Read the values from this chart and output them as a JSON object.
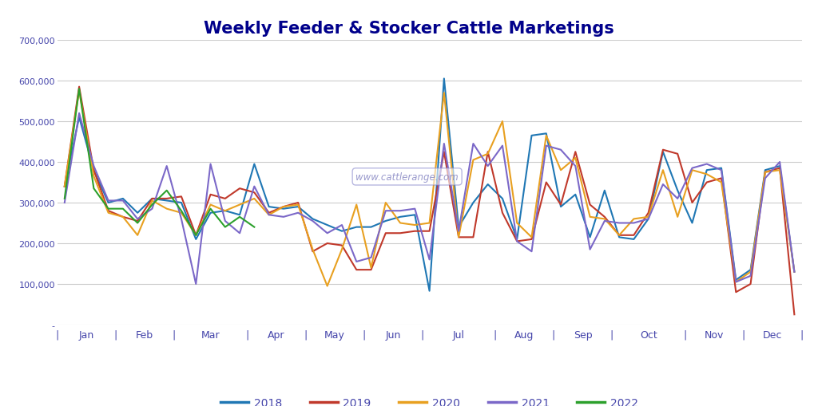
{
  "title": "Weekly Feeder & Stocker Cattle Marketings",
  "background_color": "#ffffff",
  "title_color": "#00008B",
  "title_fontsize": 15,
  "axis_label_color": "#4444aa",
  "grid_color": "#cccccc",
  "ylim": [
    0,
    700000
  ],
  "yticks": [
    0,
    100000,
    200000,
    300000,
    400000,
    500000,
    600000,
    700000
  ],
  "ytick_labels": [
    "-",
    "100,000",
    "200,000",
    "300,000",
    "400,000",
    "500,000",
    "600,000",
    "700,000"
  ],
  "watermark": "www.cattlerange.com",
  "series": {
    "2018": {
      "color": "#1f77b4",
      "values": [
        340000,
        510000,
        380000,
        300000,
        310000,
        275000,
        310000,
        305000,
        300000,
        210000,
        275000,
        280000,
        270000,
        395000,
        290000,
        285000,
        290000,
        260000,
        245000,
        230000,
        240000,
        240000,
        255000,
        265000,
        270000,
        83000,
        605000,
        240000,
        300000,
        345000,
        310000,
        210000,
        465000,
        470000,
        290000,
        320000,
        215000,
        330000,
        215000,
        210000,
        260000,
        425000,
        330000,
        250000,
        380000,
        385000,
        110000,
        135000,
        380000,
        390000,
        130000
      ]
    },
    "2019": {
      "color": "#c0392b",
      "values": [
        340000,
        585000,
        380000,
        280000,
        265000,
        255000,
        310000,
        310000,
        315000,
        220000,
        320000,
        310000,
        335000,
        325000,
        275000,
        290000,
        300000,
        180000,
        200000,
        195000,
        135000,
        135000,
        225000,
        225000,
        230000,
        230000,
        425000,
        215000,
        215000,
        425000,
        275000,
        205000,
        210000,
        350000,
        295000,
        425000,
        295000,
        265000,
        220000,
        220000,
        275000,
        430000,
        420000,
        300000,
        350000,
        360000,
        80000,
        100000,
        375000,
        385000,
        25000
      ]
    },
    "2020": {
      "color": "#e8a020",
      "values": [
        340000,
        575000,
        365000,
        275000,
        265000,
        220000,
        305000,
        285000,
        275000,
        220000,
        295000,
        280000,
        295000,
        310000,
        270000,
        290000,
        295000,
        185000,
        95000,
        185000,
        295000,
        140000,
        300000,
        250000,
        245000,
        250000,
        570000,
        215000,
        405000,
        420000,
        500000,
        250000,
        215000,
        465000,
        380000,
        410000,
        265000,
        260000,
        220000,
        260000,
        265000,
        380000,
        265000,
        380000,
        370000,
        350000,
        105000,
        130000,
        375000,
        380000,
        130000
      ]
    },
    "2021": {
      "color": "#7b68c8",
      "values": [
        300000,
        520000,
        390000,
        305000,
        305000,
        260000,
        285000,
        390000,
        260000,
        100000,
        395000,
        255000,
        225000,
        340000,
        270000,
        265000,
        275000,
        255000,
        225000,
        245000,
        155000,
        165000,
        280000,
        280000,
        285000,
        160000,
        445000,
        230000,
        445000,
        390000,
        440000,
        205000,
        180000,
        440000,
        430000,
        390000,
        185000,
        255000,
        250000,
        250000,
        260000,
        345000,
        310000,
        385000,
        395000,
        380000,
        105000,
        120000,
        360000,
        400000,
        130000
      ]
    },
    "2022": {
      "color": "#2ca02c",
      "values": [
        310000,
        580000,
        335000,
        285000,
        285000,
        250000,
        295000,
        330000,
        280000,
        220000,
        285000,
        240000,
        265000,
        240000,
        null,
        null,
        null,
        null,
        null,
        null,
        null,
        null,
        null,
        null,
        null,
        null,
        null,
        null,
        null,
        null,
        null,
        null,
        null,
        null,
        null,
        null,
        null,
        null,
        null,
        null,
        null,
        null,
        null,
        null,
        null,
        null,
        null,
        null,
        null,
        null,
        null
      ]
    }
  },
  "month_labels": [
    "Jan",
    "Feb",
    "Mar",
    "Apr",
    "May",
    "Jun",
    "Jul",
    "Aug",
    "Sep",
    "Oct",
    "Nov",
    "Dec"
  ],
  "weeks_per_month": [
    4,
    4,
    5,
    4,
    4,
    4,
    5,
    4,
    4,
    5,
    4,
    4
  ]
}
